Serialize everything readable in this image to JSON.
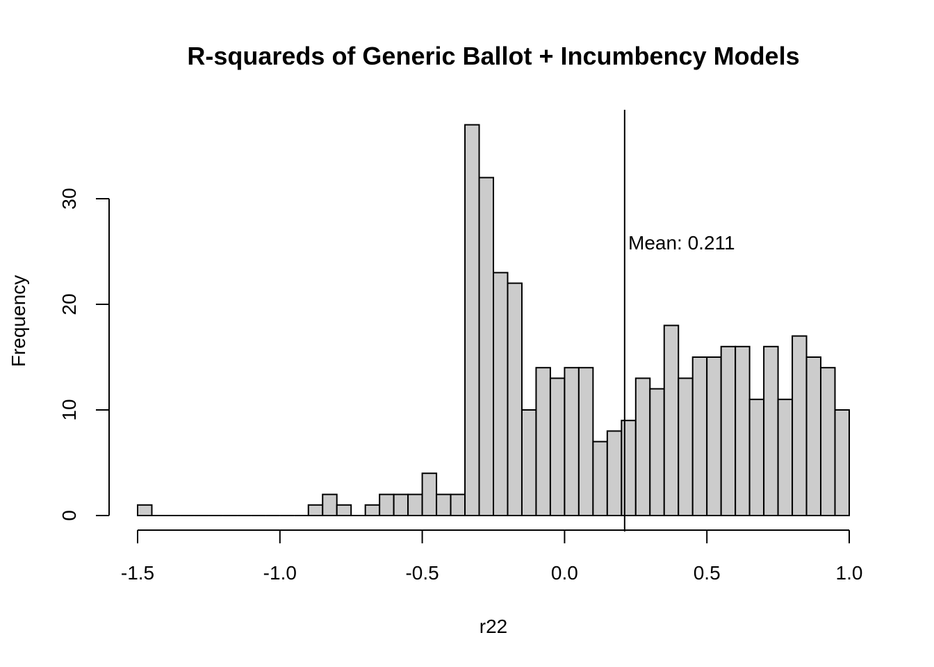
{
  "chart_data": {
    "type": "bar",
    "subtype": "histogram",
    "title": "R-squareds of Generic Ballot + Incumbency Models",
    "xlabel": "r22",
    "ylabel": "Frequency",
    "xlim": [
      -1.5,
      1.0
    ],
    "ylim": [
      0,
      38
    ],
    "x_ticks": [
      -1.5,
      -1.0,
      -0.5,
      0.0,
      0.5,
      1.0
    ],
    "x_tick_labels": [
      "-1.5",
      "-1.0",
      "-0.5",
      "0.0",
      "0.5",
      "1.0"
    ],
    "y_ticks": [
      0,
      10,
      20,
      30
    ],
    "y_tick_labels": [
      "0",
      "10",
      "20",
      "30"
    ],
    "bin_width": 0.05,
    "bin_start": -1.5,
    "counts": [
      1,
      0,
      0,
      0,
      0,
      0,
      0,
      0,
      0,
      0,
      0,
      0,
      1,
      2,
      1,
      0,
      1,
      2,
      2,
      2,
      4,
      2,
      2,
      37,
      32,
      23,
      22,
      10,
      14,
      13,
      14,
      14,
      7,
      8,
      9,
      13,
      12,
      18,
      13,
      15,
      15,
      16,
      16,
      11,
      16,
      11,
      17,
      15,
      14,
      10
    ],
    "bar_fill": "#cccccc",
    "mean_value": 0.211,
    "annotation": "Mean: 0.211",
    "grid": false
  }
}
